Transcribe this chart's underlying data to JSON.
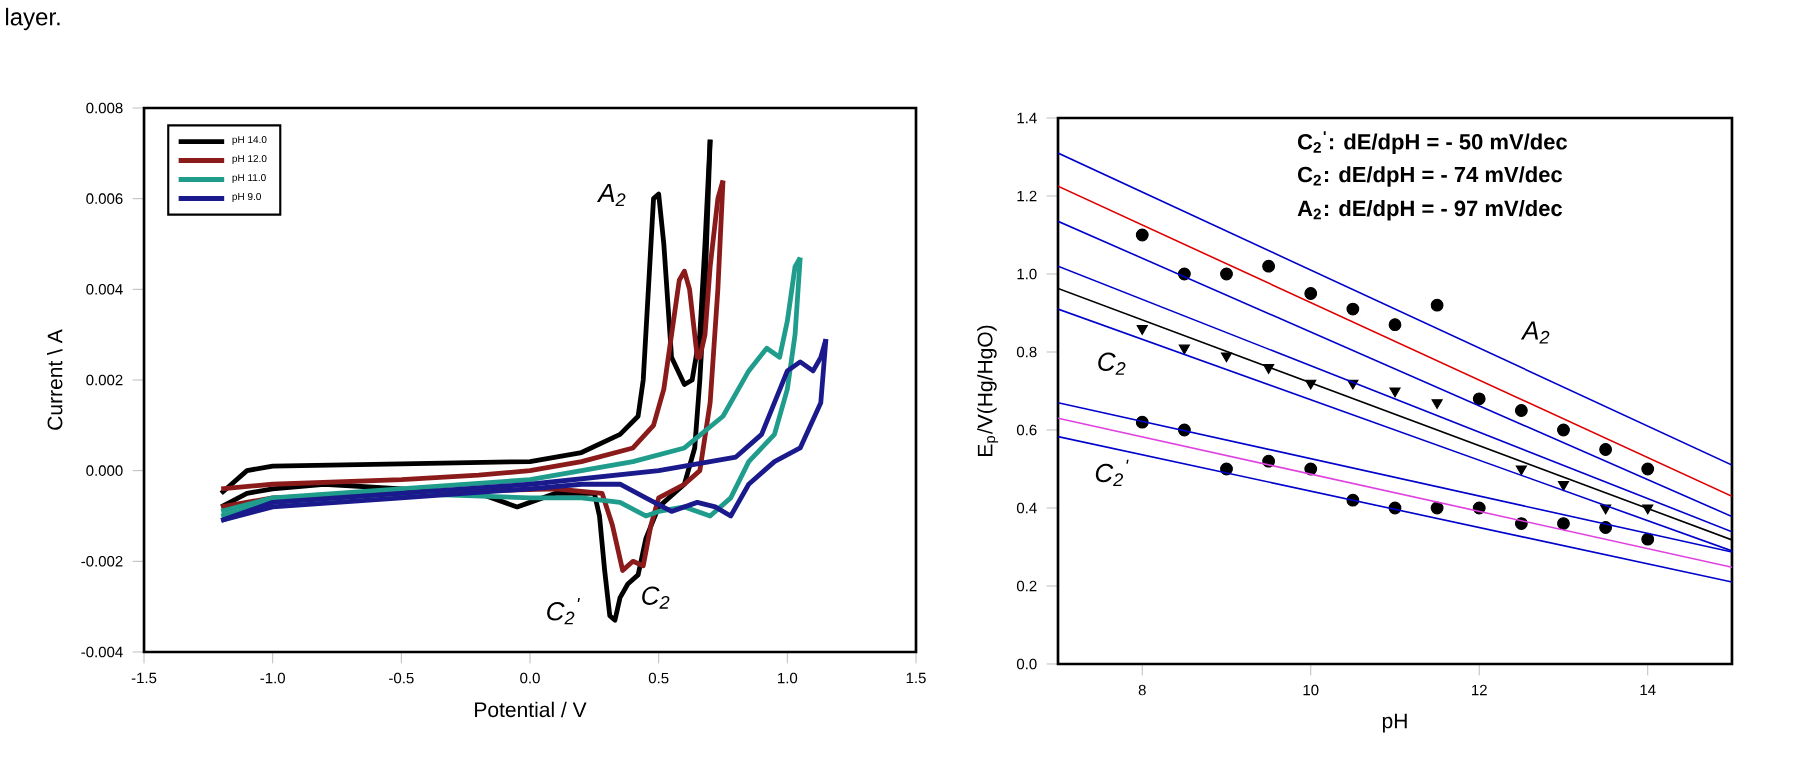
{
  "chart_data": [
    {
      "type": "line",
      "xlabel": "Potential / V",
      "ylabel": "Current \\ A",
      "legend": "top left",
      "xlim": [
        -1.5,
        1.5
      ],
      "ylim": [
        -0.004,
        0.008
      ],
      "xticks": [
        {
          "value": -1.5,
          "label": "-1.5"
        },
        {
          "value": -1.0,
          "label": "-1.0"
        },
        {
          "value": -0.5,
          "label": "-0.5"
        },
        {
          "value": 0.0,
          "label": "0.0"
        },
        {
          "value": 0.5,
          "label": "0.5"
        },
        {
          "value": 1.0,
          "label": "1.0"
        },
        {
          "value": 1.5,
          "label": "1.5"
        }
      ],
      "yticks": [
        {
          "value": -0.004,
          "label": "-0.004"
        },
        {
          "value": -0.002,
          "label": "-0.002"
        },
        {
          "value": 0.0,
          "label": "0.000"
        },
        {
          "value": 0.002,
          "label": "0.002"
        },
        {
          "value": 0.004,
          "label": "0.004"
        },
        {
          "value": 0.006,
          "label": "0.006"
        },
        {
          "value": 0.008,
          "label": "0.008"
        }
      ],
      "annotations": [
        "layer.",
        "A$_{2}$",
        "C$_{2}$$^{'}$",
        "C$_{2}$"
      ],
      "series": [
        {
          "name": "pH 14.0",
          "color": "#000000",
          "x": [
            -1.2,
            -1.1,
            -1.0,
            -0.5,
            0.0,
            0.2,
            0.35,
            0.42,
            0.44,
            0.46,
            0.48,
            0.5,
            0.52,
            0.55,
            0.6,
            0.63,
            0.66,
            0.68,
            0.7
          ],
          "values": [
            -0.0005,
            0.0,
            0.0001,
            0.00015,
            0.0002,
            0.0004,
            0.0008,
            0.0012,
            0.002,
            0.004,
            0.006,
            0.0061,
            0.005,
            0.0025,
            0.0019,
            0.002,
            0.003,
            0.005,
            0.0073
          ]
        },
        {
          "color": "#000000",
          "x": [
            0.7,
            0.68,
            0.66,
            0.64,
            0.6,
            0.5,
            0.45,
            0.42,
            0.38,
            0.35,
            0.33,
            0.31,
            0.29,
            0.27,
            0.25,
            0.1,
            0.0,
            -0.05,
            -0.2,
            -0.5,
            -0.8,
            -1.0,
            -1.1,
            -1.2
          ],
          "values": [
            0.0073,
            0.004,
            0.002,
            0.0005,
            -0.0003,
            -0.0008,
            -0.0015,
            -0.0023,
            -0.0025,
            -0.0028,
            -0.0033,
            -0.0032,
            -0.0022,
            -0.001,
            -0.0005,
            -0.0005,
            -0.0007,
            -0.0008,
            -0.0005,
            -0.0004,
            -0.0003,
            -0.0004,
            -0.0005,
            -0.0008
          ]
        },
        {
          "name": "pH 12.0",
          "color": "#8b1a1a",
          "x": [
            -1.2,
            -1.0,
            -0.5,
            -0.2,
            0.0,
            0.2,
            0.4,
            0.48,
            0.52,
            0.55,
            0.58,
            0.6,
            0.62,
            0.65,
            0.66,
            0.68,
            0.7,
            0.73,
            0.75
          ],
          "values": [
            -0.0004,
            -0.0003,
            -0.0002,
            -0.0001,
            0.0,
            0.0002,
            0.0005,
            0.001,
            0.0018,
            0.003,
            0.0042,
            0.0044,
            0.004,
            0.0025,
            0.0025,
            0.003,
            0.0045,
            0.006,
            0.0064
          ]
        },
        {
          "color": "#8b1a1a",
          "x": [
            0.75,
            0.73,
            0.7,
            0.66,
            0.6,
            0.5,
            0.47,
            0.44,
            0.4,
            0.36,
            0.32,
            0.28,
            0.1,
            -0.5,
            -1.0,
            -1.2
          ],
          "values": [
            0.0064,
            0.004,
            0.0015,
            0.0,
            -0.0003,
            -0.0006,
            -0.0012,
            -0.0021,
            -0.002,
            -0.0022,
            -0.0012,
            -0.0005,
            -0.0004,
            -0.0005,
            -0.0006,
            -0.0008
          ]
        },
        {
          "name": "pH 11.0",
          "color": "#1f9c8c",
          "x": [
            -1.2,
            -1.0,
            -0.5,
            0.0,
            0.4,
            0.6,
            0.75,
            0.85,
            0.92,
            0.97,
            1.0,
            1.03,
            1.05
          ],
          "values": [
            -0.0009,
            -0.0006,
            -0.0004,
            -0.0002,
            0.0002,
            0.0005,
            0.0012,
            0.0022,
            0.0027,
            0.0025,
            0.0033,
            0.0045,
            0.0047
          ]
        },
        {
          "color": "#1f9c8c",
          "x": [
            1.05,
            1.03,
            1.0,
            0.95,
            0.85,
            0.78,
            0.7,
            0.6,
            0.5,
            0.45,
            0.35,
            0.2,
            0.0,
            -0.5,
            -1.0,
            -1.2
          ],
          "values": [
            0.0047,
            0.003,
            0.0018,
            0.0008,
            0.0002,
            -0.0006,
            -0.001,
            -0.0008,
            -0.0009,
            -0.001,
            -0.0007,
            -0.0006,
            -0.0006,
            -0.0005,
            -0.0007,
            -0.001
          ]
        },
        {
          "name": "pH 9.0",
          "color": "#1a1a8c",
          "x": [
            -1.2,
            -1.0,
            -0.5,
            0.0,
            0.5,
            0.8,
            0.9,
            0.95,
            1.0,
            1.05,
            1.1,
            1.13,
            1.15
          ],
          "values": [
            -0.0011,
            -0.0007,
            -0.0005,
            -0.0003,
            0.0,
            0.0003,
            0.0008,
            0.0015,
            0.0022,
            0.0024,
            0.0022,
            0.0025,
            0.0029
          ]
        },
        {
          "color": "#1a1a8c",
          "x": [
            1.15,
            1.13,
            1.05,
            0.95,
            0.85,
            0.78,
            0.72,
            0.65,
            0.55,
            0.45,
            0.35,
            0.2,
            0.0,
            -0.5,
            -1.0,
            -1.2
          ],
          "values": [
            0.0029,
            0.0015,
            0.0005,
            0.0002,
            -0.0003,
            -0.001,
            -0.0008,
            -0.0007,
            -0.0009,
            -0.0006,
            -0.0003,
            -0.0003,
            -0.0004,
            -0.0006,
            -0.0008,
            -0.0011
          ]
        }
      ]
    },
    {
      "type": "scatter",
      "xlabel": "pH",
      "ylabel": "E$_{p}$/V(Hg/HgO)",
      "xlim": [
        7,
        15
      ],
      "ylim": [
        0.0,
        1.4
      ],
      "xticks": [
        8,
        10,
        12,
        14
      ],
      "yticks": [
        {
          "value": 0.0,
          "label": "0.0"
        },
        {
          "value": 0.2,
          "label": "0.2"
        },
        {
          "value": 0.4,
          "label": "0.4"
        },
        {
          "value": 0.6,
          "label": "0.6"
        },
        {
          "value": 0.8,
          "label": "0.8"
        },
        {
          "value": 1.0,
          "label": "1.0"
        },
        {
          "value": 1.2,
          "label": "1.2"
        },
        {
          "value": 1.4,
          "label": "1.4"
        }
      ],
      "annotations": [
        "C$_{2}$$^{'}$:  dE/dpH = - 50 mV/dec",
        "C$_{2}$: dE/dpH = - 74 mV/dec",
        "A$_{2}$: dE/dpH = - 97 mV/dec",
        "A$_{2}$",
        "C$_{2}$",
        "C$_{2}$$^{'}$"
      ],
      "series": [
        {
          "color": "#000000",
          "marker": "circle",
          "x": [
            8,
            8.5,
            9,
            9.5,
            10,
            10.5,
            11,
            11.5,
            12,
            12.5,
            13,
            13.5,
            14
          ],
          "values": [
            1.1,
            1.0,
            1.0,
            1.02,
            0.95,
            0.91,
            0.87,
            0.92,
            0.68,
            0.65,
            0.6,
            0.55,
            0.5
          ]
        },
        {
          "color": "#000000",
          "marker": "triangle",
          "x": [
            8,
            8.5,
            9,
            9.5,
            10,
            10.5,
            11,
            11.5,
            12.5,
            13,
            13.5,
            14
          ],
          "values": [
            0.86,
            0.81,
            0.79,
            0.76,
            0.72,
            0.72,
            0.7,
            0.67,
            0.5,
            0.46,
            0.4,
            0.4
          ]
        },
        {
          "color": "#000000",
          "marker": "circle",
          "x": [
            8,
            8.5,
            9,
            9.5,
            10,
            10.5,
            11,
            11.5,
            12,
            12.5,
            13,
            13.5,
            14
          ],
          "values": [
            0.62,
            0.6,
            0.5,
            0.52,
            0.5,
            0.42,
            0.4,
            0.4,
            0.4,
            0.36,
            0.36,
            0.35,
            0.32
          ]
        },
        {
          "type": "line",
          "color": "#e00000",
          "x": [
            7,
            15
          ],
          "values": [
            1.225,
            0.43
          ]
        },
        {
          "type": "line",
          "color": "#000000",
          "x": [
            7,
            15
          ],
          "values": [
            0.963,
            0.318
          ]
        },
        {
          "type": "line",
          "color": "#e040e0",
          "x": [
            7,
            15
          ],
          "values": [
            0.63,
            0.248
          ]
        },
        {
          "type": "line",
          "color": "#0000cc",
          "x": [
            7,
            15
          ],
          "values": [
            1.31,
            0.51
          ]
        },
        {
          "type": "line",
          "color": "#0000cc",
          "x": [
            7,
            15
          ],
          "values": [
            1.135,
            0.378
          ]
        },
        {
          "type": "line",
          "color": "#0000cc",
          "x": [
            7,
            15
          ],
          "values": [
            1.02,
            0.339
          ]
        },
        {
          "type": "line",
          "color": "#0000cc",
          "x": [
            7,
            15
          ],
          "values": [
            0.91,
            0.29
          ]
        },
        {
          "type": "line",
          "color": "#0000cc",
          "x": [
            7,
            15
          ],
          "values": [
            0.67,
            0.287
          ]
        },
        {
          "type": "line",
          "color": "#0000cc",
          "x": [
            7,
            15
          ],
          "values": [
            0.583,
            0.21
          ]
        }
      ]
    }
  ]
}
